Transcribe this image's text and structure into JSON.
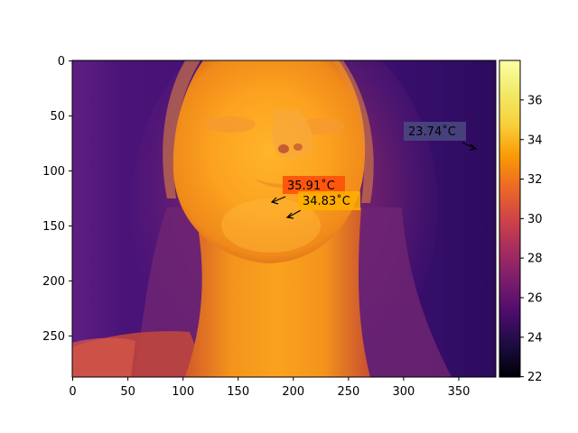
{
  "x_ticks": [
    "0",
    "50",
    "100",
    "150",
    "200",
    "250",
    "300",
    "350"
  ],
  "y_ticks": [
    "0",
    "50",
    "100",
    "150",
    "200",
    "250"
  ],
  "colorbar_ticks": [
    "22",
    "24",
    "26",
    "28",
    "30",
    "32",
    "34",
    "36"
  ],
  "colormap": "inferno",
  "colorbar_range": [
    22,
    38
  ],
  "x_range": [
    0,
    384
  ],
  "y_range": [
    0,
    288
  ],
  "annotations": [
    {
      "label": "35.91˚C",
      "target_xy": [
        181,
        129
      ],
      "box_color": "#ff4a0a"
    },
    {
      "label": "34.83˚C",
      "target_xy": [
        195,
        143
      ],
      "box_color": "#ffb000"
    },
    {
      "label": "23.74˚C",
      "target_xy": [
        368,
        81
      ],
      "box_color": "#4a4a80"
    }
  ]
}
